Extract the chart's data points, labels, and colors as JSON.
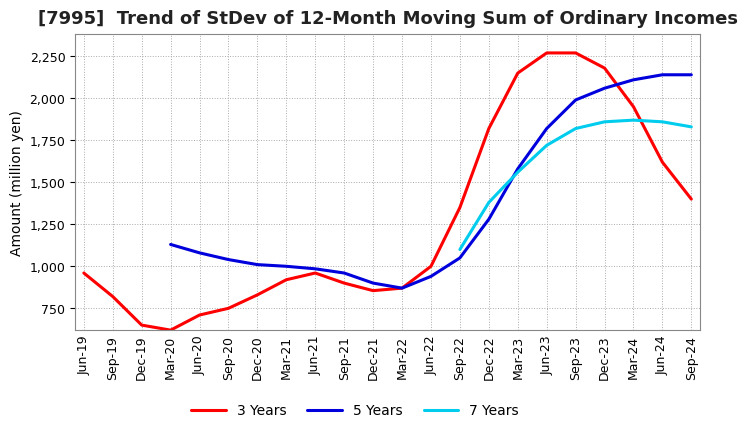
{
  "title": "[7995]  Trend of StDev of 12-Month Moving Sum of Ordinary Incomes",
  "ylabel": "Amount (million yen)",
  "ylim": [
    620,
    2380
  ],
  "yticks": [
    750,
    1000,
    1250,
    1500,
    1750,
    2000,
    2250
  ],
  "x_labels": [
    "Jun-19",
    "Sep-19",
    "Dec-19",
    "Mar-20",
    "Jun-20",
    "Sep-20",
    "Dec-20",
    "Mar-21",
    "Jun-21",
    "Sep-21",
    "Dec-21",
    "Mar-22",
    "Jun-22",
    "Sep-22",
    "Dec-22",
    "Mar-23",
    "Jun-23",
    "Sep-23",
    "Dec-23",
    "Mar-24",
    "Jun-24",
    "Sep-24"
  ],
  "series": {
    "3 Years": {
      "color": "#ff0000",
      "lw": 2.2,
      "values": [
        960,
        820,
        650,
        620,
        710,
        750,
        830,
        920,
        960,
        900,
        855,
        870,
        1000,
        1350,
        1820,
        2150,
        2270,
        2270,
        2180,
        1950,
        1620,
        1400
      ]
    },
    "5 Years": {
      "color": "#0000dd",
      "lw": 2.2,
      "values": [
        null,
        null,
        null,
        1130,
        1080,
        1040,
        1010,
        1000,
        985,
        960,
        900,
        870,
        940,
        1050,
        1280,
        1580,
        1820,
        1990,
        2060,
        2110,
        2140,
        2140
      ]
    },
    "7 Years": {
      "color": "#00ccee",
      "lw": 2.2,
      "values": [
        null,
        null,
        null,
        null,
        null,
        null,
        null,
        null,
        null,
        null,
        null,
        null,
        null,
        1100,
        1380,
        1560,
        1720,
        1820,
        1860,
        1870,
        1860,
        1830
      ]
    },
    "10 Years": {
      "color": "#007700",
      "lw": 2.2,
      "values": [
        null,
        null,
        null,
        null,
        null,
        null,
        null,
        null,
        null,
        null,
        null,
        null,
        null,
        null,
        null,
        null,
        null,
        null,
        null,
        null,
        null,
        null
      ]
    }
  },
  "plot_bg_color": "#ffffff",
  "fig_bg_color": "#ffffff",
  "grid_color": "#aaaaaa",
  "grid_style": ":",
  "title_fontsize": 13,
  "label_fontsize": 10,
  "tick_fontsize": 9,
  "legend_fontsize": 10
}
